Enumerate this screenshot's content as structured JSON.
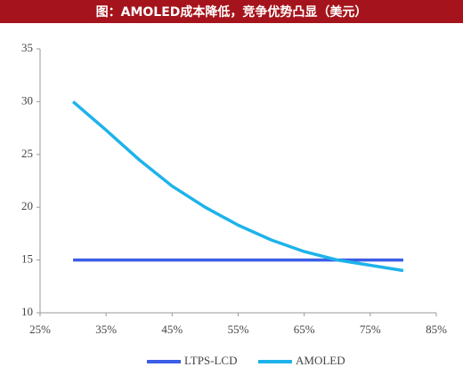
{
  "chart_data": {
    "type": "line",
    "title": "图：AMOLED成本降低，竞争优势凸显（美元）",
    "x": [
      30,
      35,
      40,
      45,
      50,
      55,
      60,
      65,
      70,
      75,
      80
    ],
    "series": [
      {
        "name": "LTPS-LCD",
        "color": "#3a5ee6",
        "values": [
          15,
          15,
          15,
          15,
          15,
          15,
          15,
          15,
          15,
          15,
          15
        ]
      },
      {
        "name": "AMOLED",
        "color": "#1db3ea",
        "values": [
          30,
          27.3,
          24.5,
          22,
          20,
          18.3,
          16.9,
          15.8,
          15,
          14.5,
          14
        ]
      }
    ],
    "xlim": [
      25,
      85
    ],
    "xticks": [
      {
        "value": 25,
        "label": "25%"
      },
      {
        "value": 35,
        "label": "35%"
      },
      {
        "value": 45,
        "label": "45%"
      },
      {
        "value": 55,
        "label": "55%"
      },
      {
        "value": 65,
        "label": "65%"
      },
      {
        "value": 75,
        "label": "75%"
      },
      {
        "value": 85,
        "label": "85%"
      }
    ],
    "ylim": [
      10,
      35
    ],
    "yticks": [
      10,
      15,
      20,
      25,
      30,
      35
    ],
    "grid": false,
    "legend": "bottom"
  }
}
